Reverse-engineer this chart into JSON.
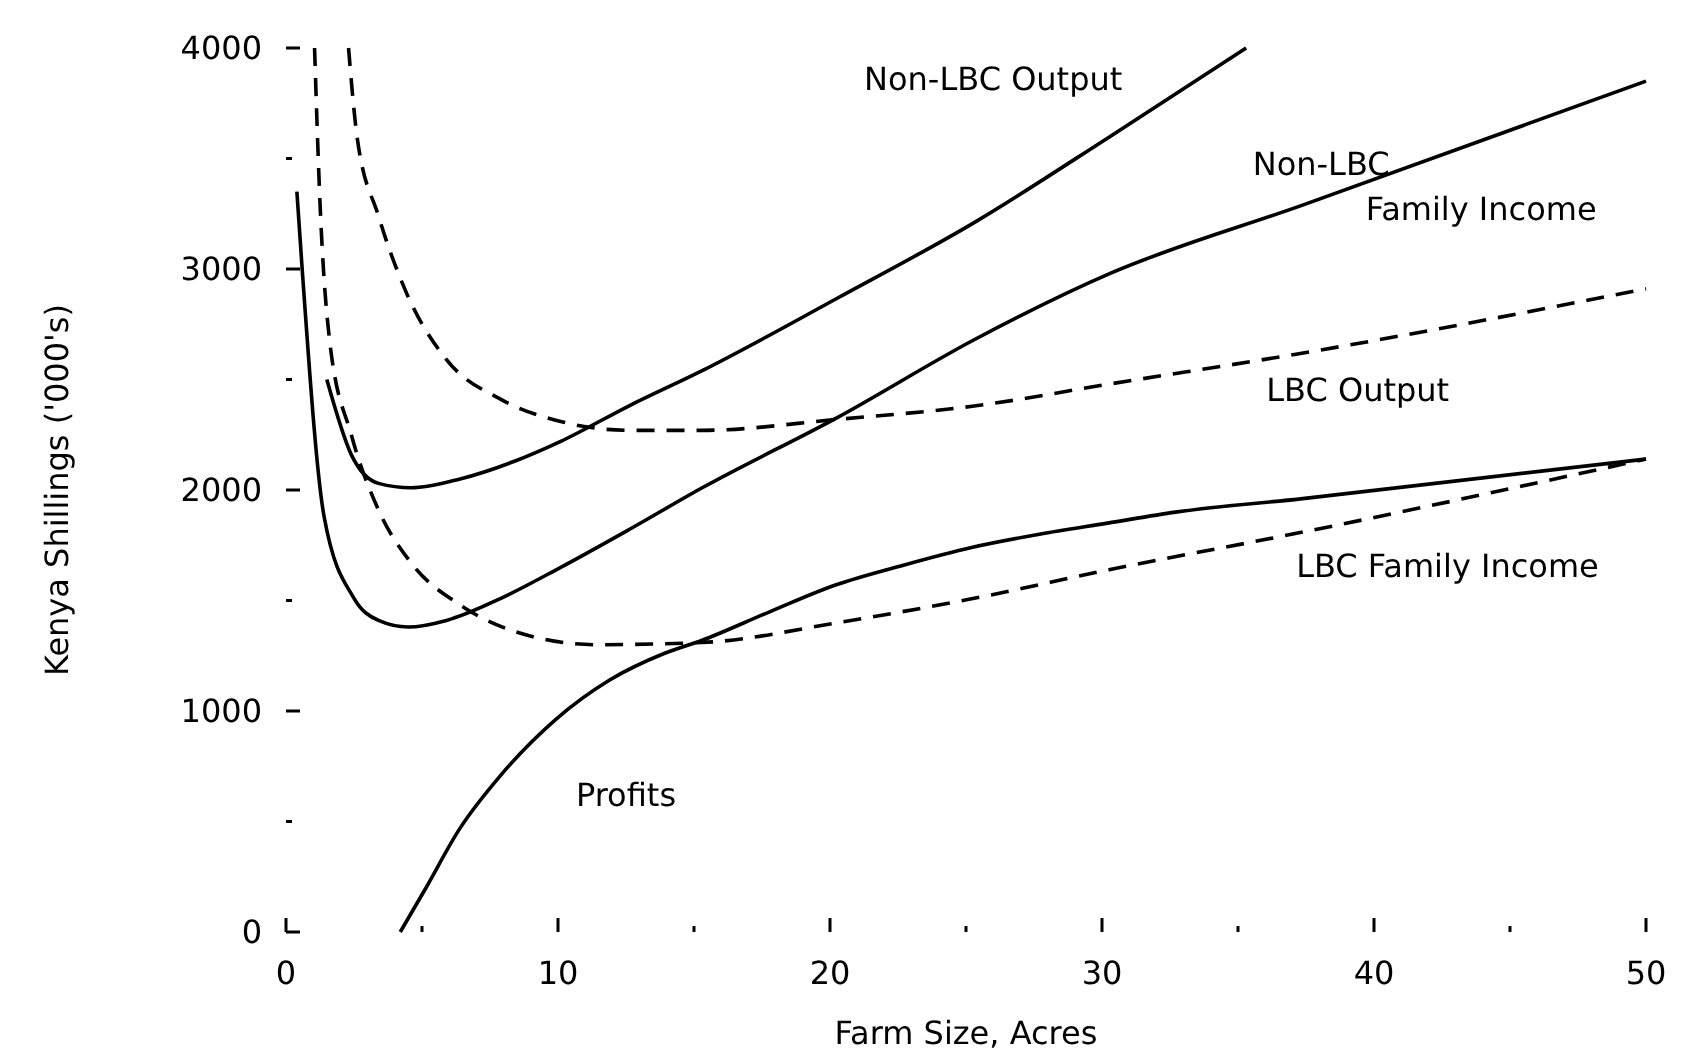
{
  "chart_data": {
    "type": "line",
    "xlabel": "Farm Size, Acres",
    "ylabel": "Kenya Shillings ('000's)",
    "xlim": [
      0,
      50
    ],
    "ylim": [
      0,
      4000
    ],
    "xticks": [
      0,
      {
        "value": 5,
        "label": null
      },
      10,
      {
        "value": 15,
        "label": null
      },
      20,
      {
        "value": 25,
        "label": null
      },
      30,
      {
        "value": 35,
        "label": null
      },
      40,
      {
        "value": 45,
        "label": null
      },
      50
    ],
    "yticks": [
      0,
      {
        "value": 500,
        "label": null
      },
      1000,
      {
        "value": 1500,
        "label": null
      },
      2000,
      {
        "value": 2500,
        "label": null
      },
      3000,
      {
        "value": 3500,
        "label": null
      },
      4000
    ],
    "marker": "none",
    "series": [
      {
        "name": "Non-LBC Output",
        "color": "#000000",
        "line_style": "solid",
        "x": [
          1.5,
          2.4,
          3.4,
          4.6,
          6.4,
          8.4,
          10.1,
          12.6,
          15.3,
          20.3,
          25.3,
          30.3,
          35.3
        ],
        "values": [
          2500,
          2160,
          2030,
          2010,
          2050,
          2130,
          2220,
          2380,
          2540,
          2870,
          3210,
          3600,
          4000
        ]
      },
      {
        "name": "Non-LBC Family Income",
        "color": "#000000",
        "line_style": "solid",
        "x": [
          0.4,
          0.6,
          1.4,
          2.5,
          3.4,
          4.5,
          5.9,
          7.9,
          10.1,
          12.6,
          15.3,
          20.3,
          25.3,
          30.3,
          37.4,
          50
        ],
        "values": [
          3350,
          2990,
          1880,
          1510,
          1410,
          1380,
          1410,
          1510,
          1650,
          1820,
          2010,
          2330,
          2680,
          2980,
          3290,
          3850
        ]
      },
      {
        "name": "LBC Output",
        "color": "#000000",
        "line_style": "dashed",
        "x": [
          2.3,
          2.6,
          3.4,
          4.4,
          5.9,
          7.9,
          10.1,
          12.6,
          15.3,
          20.3,
          25.3,
          30.3,
          37.4,
          50
        ],
        "values": [
          4000,
          3610,
          3240,
          2900,
          2590,
          2410,
          2310,
          2270,
          2270,
          2320,
          2380,
          2480,
          2620,
          2910
        ]
      },
      {
        "name": "LBC Family Income",
        "color": "#000000",
        "line_style": "dashed",
        "x": [
          1.05,
          1.25,
          1.6,
          2.4,
          3.4,
          4.6,
          6.4,
          8.4,
          11.4,
          15.3,
          20.3,
          25.3,
          30.3,
          37.4,
          50
        ],
        "values": [
          4000,
          3300,
          2680,
          2250,
          1910,
          1670,
          1480,
          1360,
          1300,
          1310,
          1400,
          1510,
          1640,
          1810,
          2140
        ]
      },
      {
        "name": "Profits",
        "color": "#000000",
        "line_style": "solid",
        "x": [
          4.2,
          5.1,
          6.4,
          7.9,
          9.9,
          11.9,
          13.9,
          15.3,
          17.8,
          20.2,
          22.7,
          25.2,
          27.7,
          30.2,
          32.7,
          37.3,
          50
        ],
        "values": [
          0,
          190,
          470,
          710,
          960,
          1140,
          1260,
          1320,
          1450,
          1570,
          1660,
          1740,
          1800,
          1850,
          1900,
          1960,
          2140
        ]
      }
    ]
  }
}
